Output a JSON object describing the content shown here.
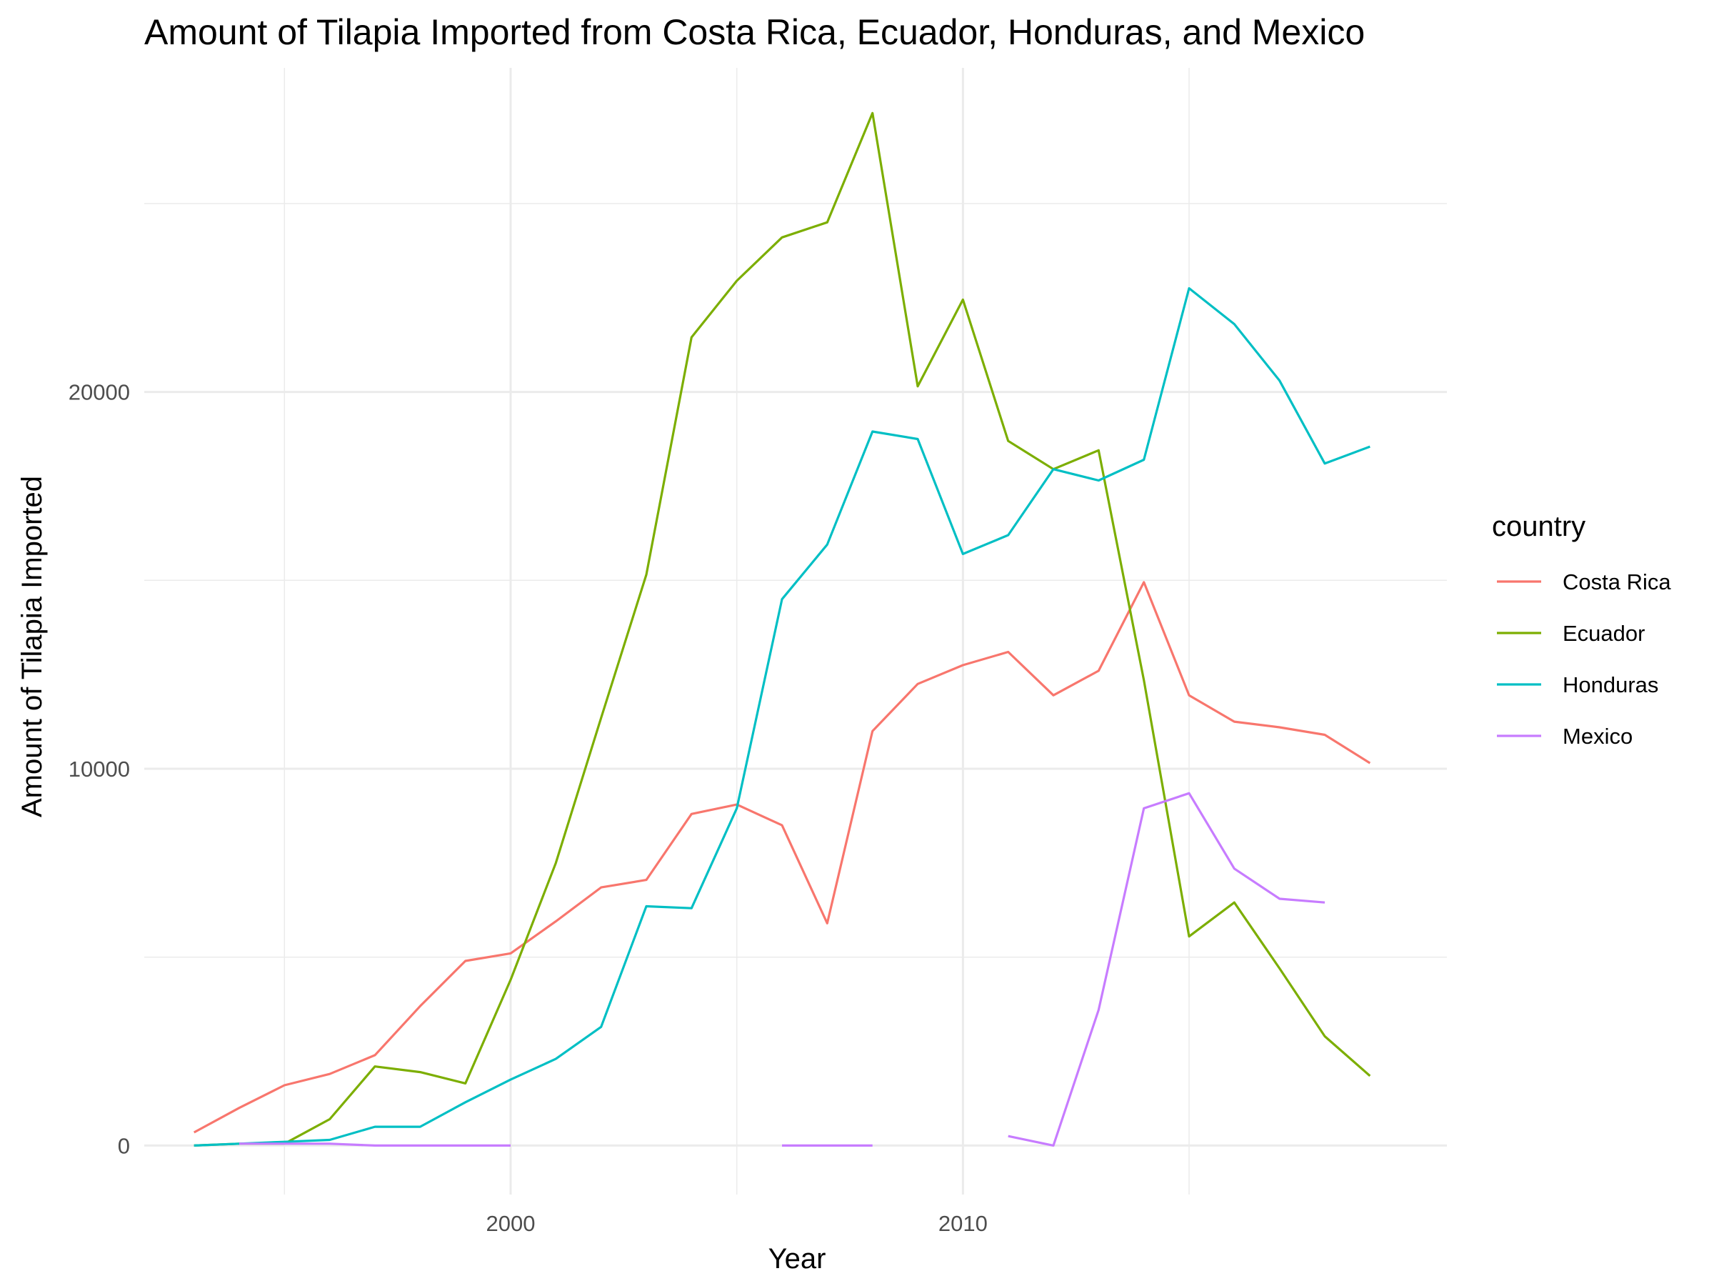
{
  "chart_data": {
    "type": "line",
    "title": "Amount of Tilapia Imported from Costa Rica, Ecuador, Honduras, and Mexico",
    "xlabel": "Year",
    "ylabel": "Amount of Tilapia Imported",
    "xlim": [
      1991.9,
      2020.7
    ],
    "ylim": [
      -1300,
      28600
    ],
    "x_ticks": [
      2000,
      2010
    ],
    "x_minor_ticks": [
      1995,
      2005,
      2015
    ],
    "y_ticks": [
      0,
      10000,
      20000
    ],
    "y_minor_ticks": [
      5000,
      15000,
      25000
    ],
    "grid": true,
    "legend": {
      "title": "country",
      "position": "right"
    },
    "series": [
      {
        "name": "Costa Rica",
        "color": "#F8766D",
        "points": [
          [
            1993,
            350
          ],
          [
            1994,
            1000
          ],
          [
            1995,
            1600
          ],
          [
            1996,
            1900
          ],
          [
            1997,
            2400
          ],
          [
            1998,
            3700
          ],
          [
            1999,
            4900
          ],
          [
            2000,
            5100
          ],
          [
            2001,
            5950
          ],
          [
            2002,
            6850
          ],
          [
            2003,
            7050
          ],
          [
            2004,
            8800
          ],
          [
            2005,
            9050
          ],
          [
            2006,
            8500
          ],
          [
            2007,
            5900
          ],
          [
            2008,
            11000
          ],
          [
            2009,
            12250
          ],
          [
            2010,
            12750
          ],
          [
            2011,
            13100
          ],
          [
            2012,
            11950
          ],
          [
            2013,
            12600
          ],
          [
            2014,
            14950
          ],
          [
            2015,
            11950
          ],
          [
            2016,
            11250
          ],
          [
            2017,
            11100
          ],
          [
            2018,
            10900
          ],
          [
            2019,
            10150
          ]
        ]
      },
      {
        "name": "Ecuador",
        "color": "#7CAE00",
        "points": [
          [
            1993,
            0
          ],
          [
            1994,
            50
          ],
          [
            1995,
            50
          ],
          [
            1996,
            700
          ],
          [
            1997,
            2100
          ],
          [
            1998,
            1950
          ],
          [
            1999,
            1650
          ],
          [
            2000,
            4400
          ],
          [
            2001,
            7500
          ],
          [
            2002,
            11350
          ],
          [
            2003,
            15150
          ],
          [
            2004,
            21450
          ],
          [
            2005,
            22950
          ],
          [
            2006,
            24100
          ],
          [
            2007,
            24500
          ],
          [
            2008,
            27400
          ],
          [
            2009,
            20150
          ],
          [
            2010,
            22450
          ],
          [
            2011,
            18700
          ],
          [
            2012,
            17950
          ],
          [
            2013,
            18450
          ],
          [
            2014,
            12350
          ],
          [
            2015,
            5550
          ],
          [
            2016,
            6450
          ],
          [
            2017,
            4700
          ],
          [
            2018,
            2900
          ],
          [
            2019,
            1850
          ]
        ]
      },
      {
        "name": "Honduras",
        "color": "#00BFC4",
        "points": [
          [
            1993,
            0
          ],
          [
            1994,
            50
          ],
          [
            1995,
            100
          ],
          [
            1996,
            150
          ],
          [
            1997,
            500
          ],
          [
            1998,
            500
          ],
          [
            1999,
            1150
          ],
          [
            2000,
            1750
          ],
          [
            2001,
            2300
          ],
          [
            2002,
            3150
          ],
          [
            2003,
            6350
          ],
          [
            2004,
            6300
          ],
          [
            2005,
            8950
          ],
          [
            2006,
            14500
          ],
          [
            2007,
            15950
          ],
          [
            2008,
            18950
          ],
          [
            2009,
            18750
          ],
          [
            2010,
            15700
          ],
          [
            2011,
            16200
          ],
          [
            2012,
            17950
          ],
          [
            2013,
            17650
          ],
          [
            2014,
            18200
          ],
          [
            2015,
            22750
          ],
          [
            2016,
            21800
          ],
          [
            2017,
            20300
          ],
          [
            2018,
            18100
          ],
          [
            2019,
            18550
          ]
        ]
      },
      {
        "name": "Mexico",
        "color": "#C77CFF",
        "segments": [
          [
            [
              1994,
              50
            ],
            [
              1995,
              50
            ],
            [
              1996,
              50
            ],
            [
              1997,
              0
            ],
            [
              1998,
              0
            ],
            [
              1999,
              0
            ],
            [
              2000,
              0
            ]
          ],
          [
            [
              2006,
              0
            ],
            [
              2007,
              0
            ],
            [
              2008,
              0
            ]
          ],
          [
            [
              2011,
              250
            ],
            [
              2012,
              0
            ],
            [
              2013,
              3600
            ],
            [
              2014,
              8950
            ],
            [
              2015,
              9350
            ],
            [
              2016,
              7350
            ],
            [
              2017,
              6550
            ],
            [
              2018,
              6450
            ]
          ]
        ]
      }
    ]
  }
}
